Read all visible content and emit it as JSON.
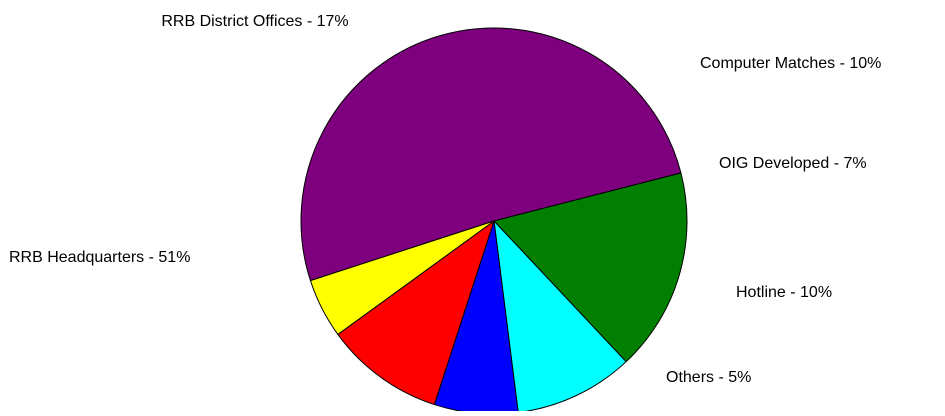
{
  "chart_data": {
    "type": "pie",
    "title": "",
    "slices": [
      {
        "label": "RRB Headquarters - 51%",
        "name": "RRB Headquarters",
        "value": 51,
        "color": "#7f007f"
      },
      {
        "label": "RRB District Offices - 17%",
        "name": "RRB District Offices",
        "value": 17,
        "color": "#007f00"
      },
      {
        "label": "Computer Matches - 10%",
        "name": "Computer Matches",
        "value": 10,
        "color": "#00ffff"
      },
      {
        "label": "OIG Developed - 7%",
        "name": "OIG Developed",
        "value": 7,
        "color": "#0000ff"
      },
      {
        "label": "Hotline - 10%",
        "name": "Hotline",
        "value": 10,
        "color": "#ff0000"
      },
      {
        "label": "Others - 5%",
        "name": "Others",
        "value": 5,
        "color": "#ffff00"
      }
    ]
  }
}
